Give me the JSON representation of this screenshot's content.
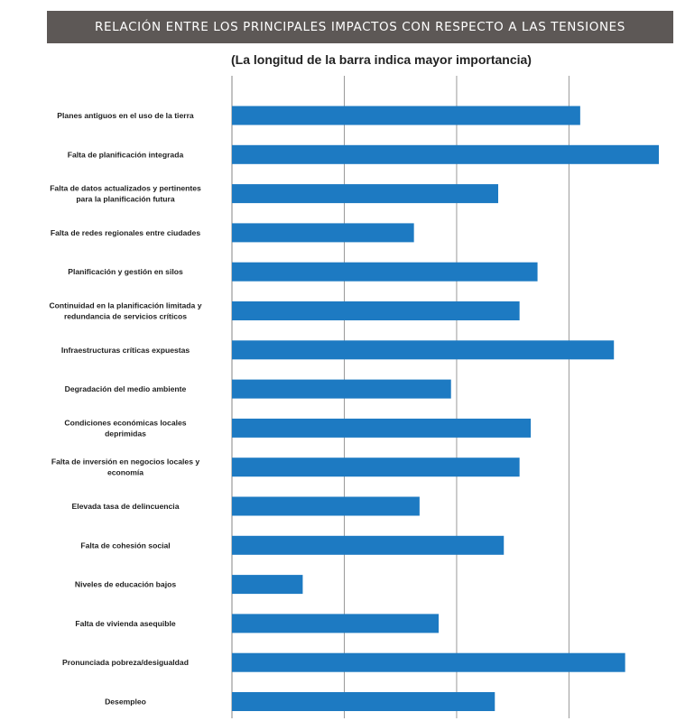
{
  "colors": {
    "banner_bg": "#5d5856",
    "bar": "#1d7ac2",
    "grid": "#9a9a9a"
  },
  "chart_data": {
    "type": "bar",
    "orientation": "horizontal",
    "title": "RELACIÓN ENTRE LOS PRINCIPALES IMPACTOS CON RESPECTO A LAS TENSIONES",
    "subtitle": "(La longitud de la barra indica mayor importancia)",
    "xlabel": "",
    "ylabel": "",
    "xlim": [
      0,
      3.8
    ],
    "grid": true,
    "legend": "none",
    "categories": [
      [
        "Planes antiguos en el uso de la tierra"
      ],
      [
        "Falta de planificación integrada"
      ],
      [
        "Falta de datos actualizados y pertinentes",
        "para la planificación futura"
      ],
      [
        "Falta de redes regionales entre ciudades"
      ],
      [
        "Planificación y gestión en silos"
      ],
      [
        "Continuidad en la planificación limitada y",
        "redundancia de servicios críticos"
      ],
      [
        "Infraestructuras críticas expuestas"
      ],
      [
        "Degradación del medio ambiente"
      ],
      [
        "Condiciones económicas locales",
        "deprimidas"
      ],
      [
        "Falta de inversión en negocios locales y",
        "economía"
      ],
      [
        "Elevada tasa de delincuencia"
      ],
      [
        "Falta de cohesión social"
      ],
      [
        "Niveles de educación bajos"
      ],
      [
        "Falta de vivienda asequible"
      ],
      [
        "Pronunciada pobreza/desigualdad"
      ],
      [
        "Desempleo"
      ]
    ],
    "values": [
      3.1,
      3.8,
      2.37,
      1.62,
      2.72,
      2.56,
      3.4,
      1.95,
      2.66,
      2.56,
      1.67,
      2.42,
      0.63,
      1.84,
      3.5,
      2.34
    ]
  }
}
